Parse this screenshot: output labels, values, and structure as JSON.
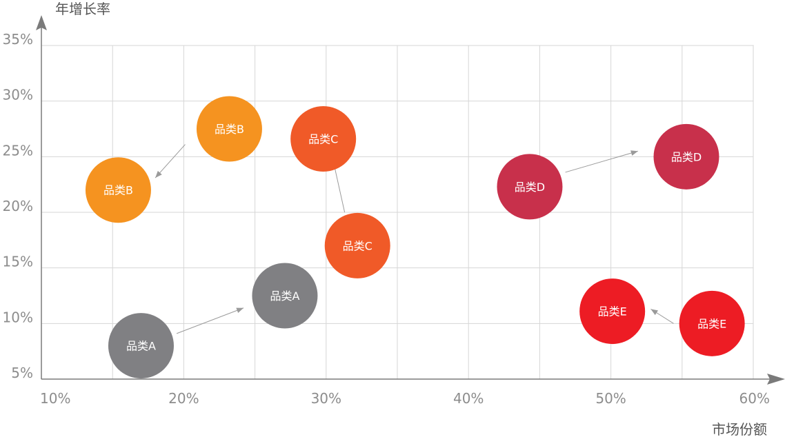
{
  "chart_data": {
    "type": "scatter",
    "xlabel": "市场份额",
    "ylabel": "年增长率",
    "x_ticks": [
      "10%",
      "20%",
      "30%",
      "40%",
      "50%",
      "60%"
    ],
    "y_ticks": [
      "5%",
      "10%",
      "15%",
      "20%",
      "25%",
      "30%",
      "35%"
    ],
    "grid": true,
    "points": [
      {
        "label": "品类A",
        "x": 17.0,
        "y": 8.0,
        "color": "#808083",
        "series": "A"
      },
      {
        "label": "品类A",
        "x": 27.1,
        "y": 12.5,
        "color": "#808083",
        "series": "A"
      },
      {
        "label": "品类B",
        "x": 23.2,
        "y": 27.5,
        "color": "#f59320",
        "series": "B"
      },
      {
        "label": "品类B",
        "x": 15.4,
        "y": 22.0,
        "color": "#f59320",
        "series": "B"
      },
      {
        "label": "品类C",
        "x": 32.2,
        "y": 17.0,
        "color": "#f05a28",
        "series": "C"
      },
      {
        "label": "品类C",
        "x": 29.8,
        "y": 26.6,
        "color": "#f05a28",
        "series": "C"
      },
      {
        "label": "品类D",
        "x": 44.3,
        "y": 22.3,
        "color": "#c8304b",
        "series": "D"
      },
      {
        "label": "品类D",
        "x": 55.3,
        "y": 25.0,
        "color": "#c8304b",
        "series": "D"
      },
      {
        "label": "品类E",
        "x": 57.1,
        "y": 10.0,
        "color": "#ed1c24",
        "series": "E"
      },
      {
        "label": "品类E",
        "x": 50.1,
        "y": 11.1,
        "color": "#ed1c24",
        "series": "E"
      }
    ],
    "arrows": [
      {
        "from": [
          19.5,
          9.1
        ],
        "to": [
          24.2,
          11.4
        ]
      },
      {
        "from": [
          20.1,
          26.1
        ],
        "to": [
          18.0,
          23.1
        ]
      },
      {
        "from": [
          31.3,
          20.0
        ],
        "to": [
          30.5,
          24.6
        ]
      },
      {
        "from": [
          46.8,
          23.6
        ],
        "to": [
          51.9,
          25.5
        ]
      },
      {
        "from": [
          54.4,
          10.0
        ],
        "to": [
          52.8,
          11.3
        ]
      }
    ]
  }
}
